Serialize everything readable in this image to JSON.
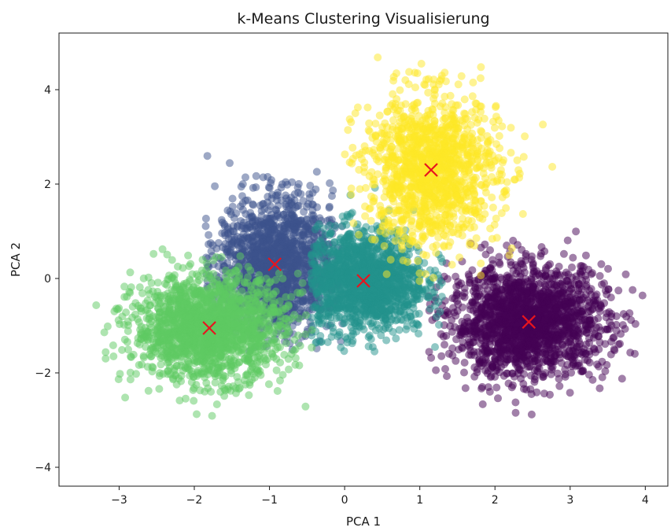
{
  "chart_data": {
    "type": "scatter",
    "title": "k-Means Clustering Visualisierung",
    "xlabel": "PCA 1",
    "ylabel": "PCA 2",
    "xlim": [
      -3.8,
      4.3
    ],
    "ylim": [
      -4.4,
      5.2
    ],
    "xticks": [
      -3,
      -2,
      -1,
      0,
      1,
      2,
      3,
      4
    ],
    "xtick_labels": [
      "−3",
      "−2",
      "−1",
      "0",
      "1",
      "2",
      "3",
      "4"
    ],
    "yticks": [
      -4,
      -2,
      0,
      2,
      4
    ],
    "ytick_labels": [
      "−4",
      "−2",
      "0",
      "2",
      "4"
    ],
    "grid": false,
    "point_alpha": 0.5,
    "clusters": [
      {
        "color": "#440154",
        "center": [
          2.45,
          -0.92
        ],
        "spread": [
          0.52,
          0.58
        ],
        "n": 1800,
        "extent": [
          [
            1.1,
            4.1
          ],
          [
            -3.4,
            1.6
          ]
        ]
      },
      {
        "color": "#3b528b",
        "center": [
          -0.93,
          0.3
        ],
        "spread": [
          0.38,
          0.72
        ],
        "n": 1500,
        "extent": [
          [
            -1.85,
            0.05
          ],
          [
            -1.6,
            2.8
          ]
        ]
      },
      {
        "color": "#21918c",
        "center": [
          0.25,
          -0.05
        ],
        "spread": [
          0.42,
          0.55
        ],
        "n": 1500,
        "extent": [
          [
            -0.45,
            1.3
          ],
          [
            -1.6,
            2.4
          ]
        ]
      },
      {
        "color": "#5ec962",
        "center": [
          -1.8,
          -1.05
        ],
        "spread": [
          0.5,
          0.55
        ],
        "n": 1700,
        "extent": [
          [
            -3.5,
            -0.3
          ],
          [
            -3.95,
            1.7
          ]
        ]
      },
      {
        "color": "#fde725",
        "center": [
          1.15,
          2.3
        ],
        "spread": [
          0.45,
          0.8
        ],
        "n": 1300,
        "extent": [
          [
            0.0,
            3.7
          ],
          [
            -0.1,
            4.8
          ]
        ]
      }
    ],
    "centroids": {
      "marker": "x",
      "color": "#e8141e",
      "points": [
        [
          2.45,
          -0.92
        ],
        [
          -0.93,
          0.3
        ],
        [
          0.25,
          -0.05
        ],
        [
          -1.8,
          -1.05
        ],
        [
          1.15,
          2.3
        ]
      ]
    }
  }
}
